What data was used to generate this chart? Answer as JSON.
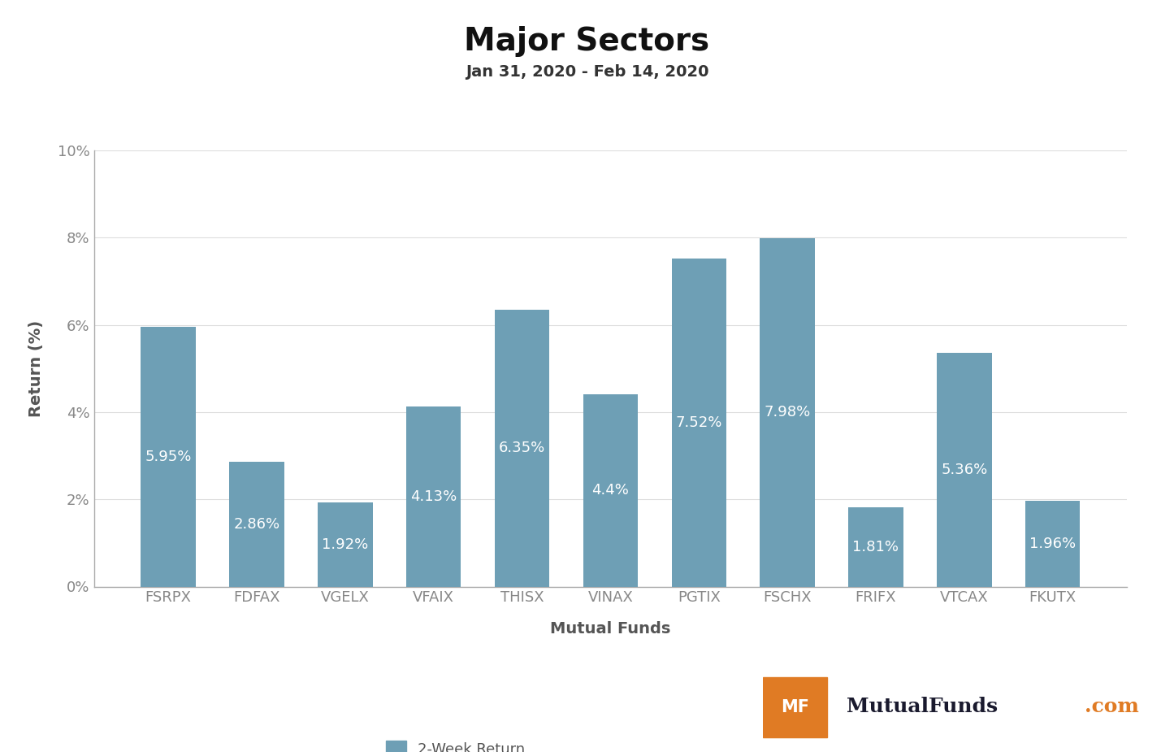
{
  "title": "Major Sectors",
  "subtitle": "Jan 31, 2020 - Feb 14, 2020",
  "categories": [
    "FSRPX",
    "FDFAX",
    "VGELX",
    "VFAIX",
    "THISX",
    "VINAX",
    "PGTIX",
    "FSCHX",
    "FRIFX",
    "VTCAX",
    "FKUTX"
  ],
  "values": [
    5.95,
    2.86,
    1.92,
    4.13,
    6.35,
    4.4,
    7.52,
    7.98,
    1.81,
    5.36,
    1.96
  ],
  "labels": [
    "5.95%",
    "2.86%",
    "1.92%",
    "4.13%",
    "6.35%",
    "4.4%",
    "7.52%",
    "7.98%",
    "1.81%",
    "5.36%",
    "1.96%"
  ],
  "bar_color": "#6e9fb5",
  "xlabel": "Mutual Funds",
  "ylabel": "Return (%)",
  "ylim": [
    0,
    10
  ],
  "ytick_labels": [
    "0%",
    "2%",
    "4%",
    "6%",
    "8%",
    "10%"
  ],
  "ytick_values": [
    0,
    2,
    4,
    6,
    8,
    10
  ],
  "title_fontsize": 28,
  "subtitle_fontsize": 14,
  "label_fontsize": 13,
  "axis_label_fontsize": 14,
  "tick_fontsize": 13,
  "legend_label": "2-Week Return",
  "background_color": "#ffffff",
  "legend_color": "#6e9fb5",
  "text_color_inside": "#ffffff",
  "logo_bg_color": "#e07b24",
  "logo_text_color": "#1a1a2e",
  "logo_com_color": "#e07b24",
  "spine_color": "#aaaaaa",
  "grid_color": "#dddddd",
  "tick_color": "#888888",
  "axis_label_color": "#555555"
}
